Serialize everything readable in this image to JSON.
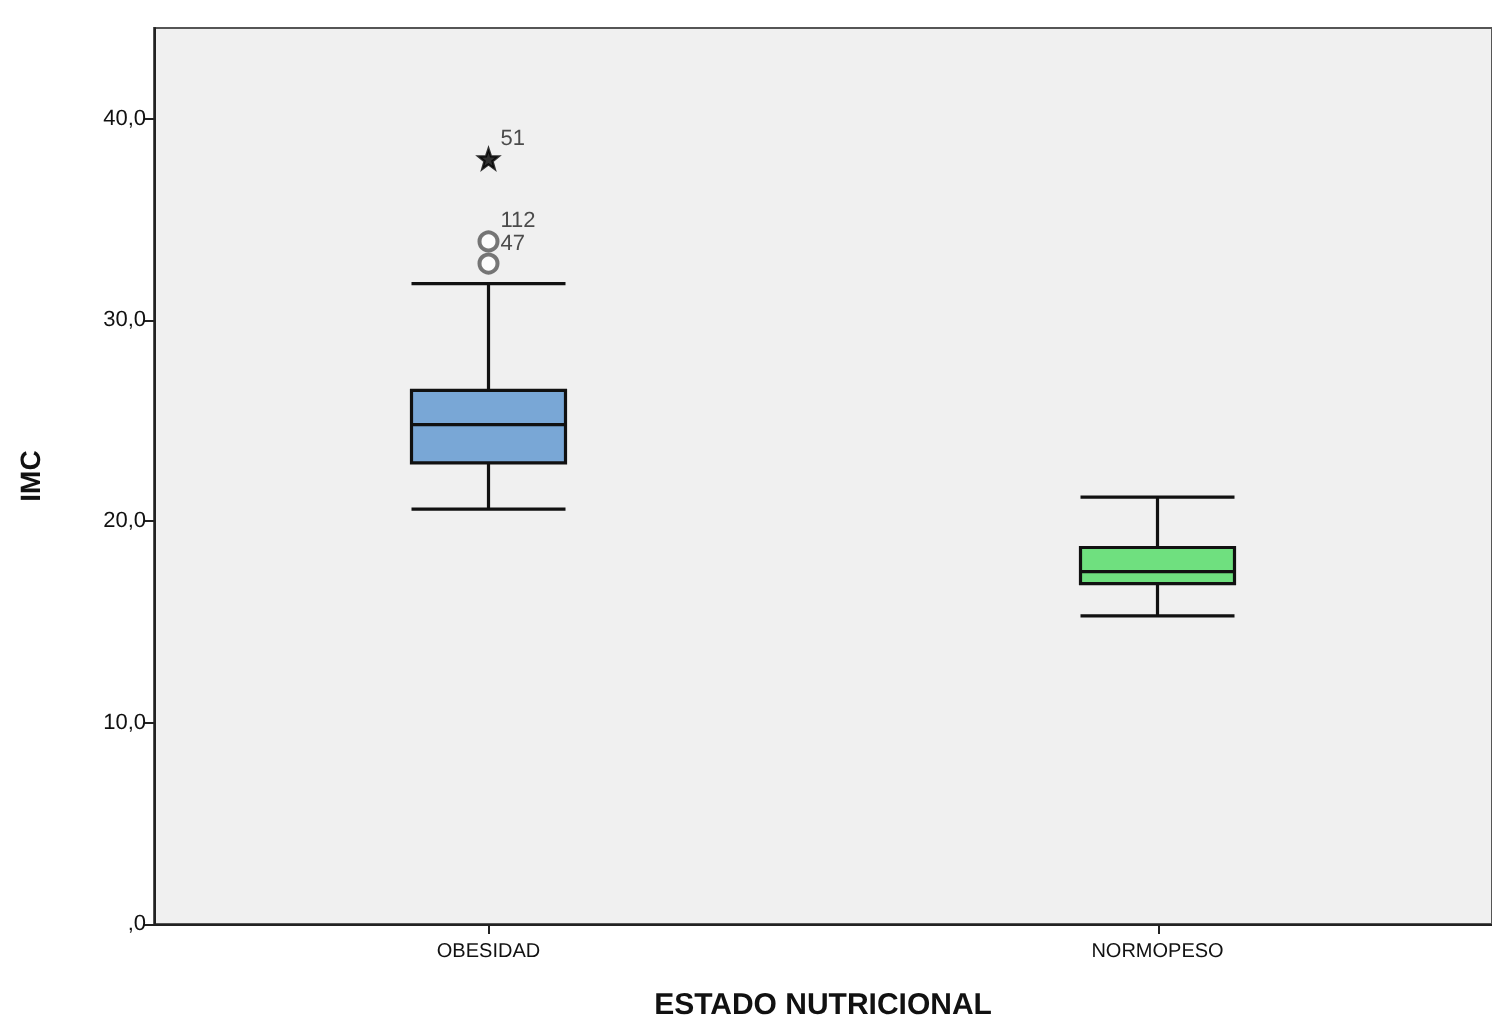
{
  "chart_data": {
    "type": "box",
    "xlabel": "ESTADO NUTRICIONAL",
    "ylabel": "IMC",
    "categories": [
      "OBESIDAD",
      "NORMOPESO"
    ],
    "ylim": [
      0,
      44.5
    ],
    "yticks": [
      {
        "value": 0,
        "label": ",0"
      },
      {
        "value": 10,
        "label": "10,0"
      },
      {
        "value": 20,
        "label": "20,0"
      },
      {
        "value": 30,
        "label": "30,0"
      },
      {
        "value": 40,
        "label": "40,0"
      }
    ],
    "series": [
      {
        "colors": [
          "#79a7d6",
          "#6fe07f"
        ],
        "boxes": [
          {
            "low": 20.6,
            "q1": 22.9,
            "median": 24.8,
            "q3": 26.5,
            "high": 31.8
          },
          {
            "low": 15.3,
            "q1": 16.9,
            "median": 17.5,
            "q3": 18.7,
            "high": 21.2
          }
        ]
      },
      {
        "type": "scatter",
        "x": [
          "OBESIDAD",
          "OBESIDAD"
        ],
        "values": [
          32.8,
          33.9
        ],
        "marker": "circle",
        "color": "#555555"
      },
      {
        "type": "scatter",
        "x": [
          "OBESIDAD"
        ],
        "values": [
          38.0
        ],
        "marker": "star",
        "color": "#000000"
      }
    ],
    "annotations": [
      {
        "text": "51",
        "x": "OBESIDAD",
        "y": 38.0
      },
      {
        "text": "112",
        "x": "OBESIDAD",
        "y": 33.9
      },
      {
        "text": "47",
        "x": "OBESIDAD",
        "y": 32.8
      }
    ]
  }
}
